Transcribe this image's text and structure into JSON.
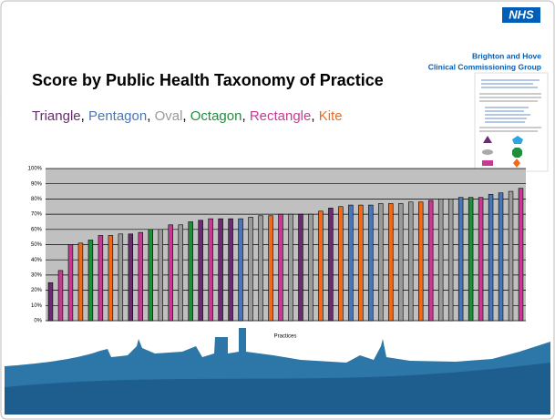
{
  "header": {
    "logo": "NHS",
    "org_line1": "Brighton and Hove",
    "org_line2": "Clinical Commissioning Group"
  },
  "chart_data": {
    "type": "bar",
    "title": "Score by Public Health Taxonomy of Practice",
    "legend": [
      {
        "name": "Triangle",
        "color": "#6a2c70"
      },
      {
        "name": "Pentagon",
        "color": "#4a76b8"
      },
      {
        "name": "Oval",
        "color": "#9a9a9a"
      },
      {
        "name": "Octagon",
        "color": "#1f8f3c"
      },
      {
        "name": "Rectangle",
        "color": "#c73a94"
      },
      {
        "name": "Kite",
        "color": "#f06a1a"
      }
    ],
    "legend_separator": ", ",
    "x_label": "Practices",
    "values": [
      25,
      33,
      50,
      51,
      53,
      56,
      56,
      57,
      57,
      58,
      60,
      60,
      63,
      63,
      65,
      66,
      67,
      67,
      67,
      67,
      68,
      69,
      69,
      70,
      70,
      70,
      70,
      72,
      74,
      75,
      76,
      76,
      76,
      77,
      77,
      77,
      78,
      78,
      79,
      80,
      80,
      81,
      81,
      81,
      83,
      84,
      85,
      87
    ],
    "bar_colors": [
      "#6a2c70",
      "#c73a94",
      "#c73a94",
      "#f06a1a",
      "#1f8f3c",
      "#c73a94",
      "#f06a1a",
      "#9a9a9a",
      "#6a2c70",
      "#c73a94",
      "#1f8f3c",
      "#9a9a9a",
      "#c73a94",
      "#9a9a9a",
      "#1f8f3c",
      "#6a2c70",
      "#c73a94",
      "#6a2c70",
      "#6a2c70",
      "#4a76b8",
      "#9a9a9a",
      "#9a9a9a",
      "#f06a1a",
      "#c73a94",
      "#9a9a9a",
      "#6a2c70",
      "#9a9a9a",
      "#f06a1a",
      "#6a2c70",
      "#f06a1a",
      "#4a76b8",
      "#f06a1a",
      "#4a76b8",
      "#9a9a9a",
      "#f06a1a",
      "#9a9a9a",
      "#9a9a9a",
      "#f06a1a",
      "#c73a94",
      "#9a9a9a",
      "#9a9a9a",
      "#4a76b8",
      "#1f8f3c",
      "#c73a94",
      "#4a76b8",
      "#4a76b8",
      "#9a9a9a",
      "#c73a94"
    ],
    "ylim": [
      0,
      100
    ],
    "yticks": [
      {
        "value": 0,
        "label": "0%"
      },
      {
        "value": 10,
        "label": "10%"
      },
      {
        "value": 20,
        "label": "20%"
      },
      {
        "value": 30,
        "label": "30%"
      },
      {
        "value": 40,
        "label": "40%"
      },
      {
        "value": 50,
        "label": "50%"
      },
      {
        "value": 60,
        "label": "60%"
      },
      {
        "value": 70,
        "label": "70%"
      },
      {
        "value": 80,
        "label": "80%"
      },
      {
        "value": 90,
        "label": "90%"
      },
      {
        "value": 100,
        "label": "100%"
      }
    ],
    "grid": true
  }
}
